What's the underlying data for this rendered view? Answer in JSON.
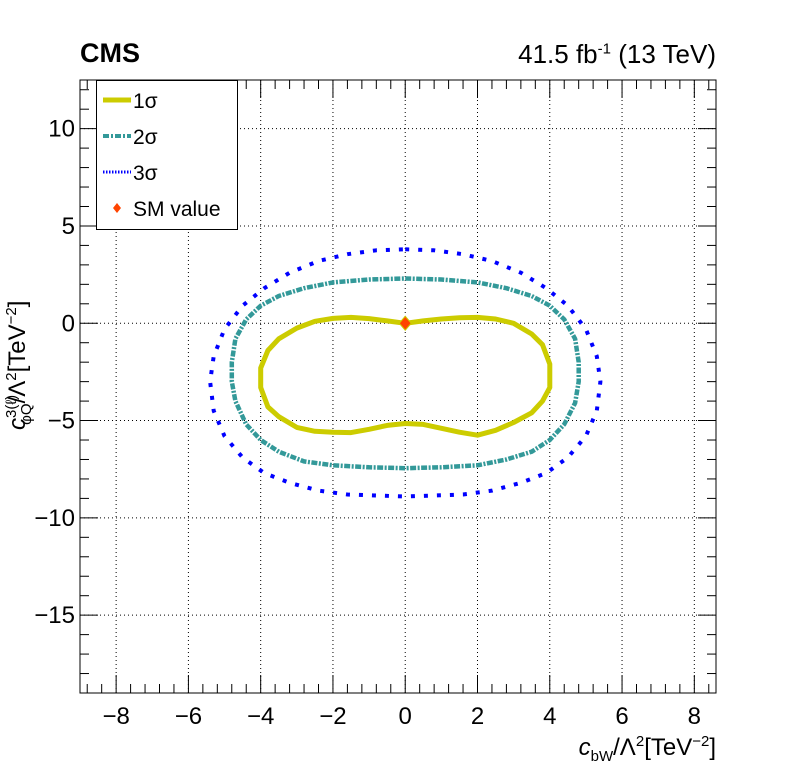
{
  "header": {
    "experiment": "CMS",
    "lumi_prefix": "41.5 fb",
    "lumi_exp": "-1",
    "lumi_suffix": " (13 TeV)"
  },
  "axes": {
    "xlabel_var": "c",
    "xlabel_sub": "bW",
    "xlabel_rest": "/Λ",
    "xlabel_sq": "2",
    "xlabel_unit": "[TeV",
    "xlabel_unit_exp": "−2",
    "xlabel_close": "]",
    "ylabel_var": "c",
    "ylabel_sup": "3(ℓ)",
    "ylabel_sub": "φQ",
    "ylabel_rest": "/Λ",
    "ylabel_sq": "2",
    "ylabel_unit": "[TeV",
    "ylabel_unit_exp": "−2",
    "ylabel_close": "]"
  },
  "legend": [
    {
      "label": "1σ",
      "color": "#cccc00",
      "style": "solid"
    },
    {
      "label": "2σ",
      "color": "#339999",
      "style": "dash-dot"
    },
    {
      "label": "3σ",
      "color": "#0000ff",
      "style": "dotted"
    },
    {
      "label": "SM value",
      "color": "#ff4400",
      "style": "marker"
    }
  ],
  "chart_data": {
    "type": "scatter",
    "xlim": [
      -9,
      8.6
    ],
    "ylim": [
      -19,
      12.5
    ],
    "x_ticks": [
      -8,
      -6,
      -4,
      -2,
      0,
      2,
      4,
      6,
      8
    ],
    "y_ticks": [
      -15,
      -10,
      -5,
      0,
      5,
      10
    ],
    "x_tick_labels": [
      "−8",
      "−6",
      "−4",
      "−2",
      "0",
      "2",
      "4",
      "6",
      "8"
    ],
    "y_tick_labels": [
      "−15",
      "−10",
      "−5",
      "0",
      "5",
      "10"
    ],
    "grid": true,
    "legend_position": "top-left",
    "series": [
      {
        "name": "1σ",
        "color": "#cccc00",
        "x": [
          0,
          0.5,
          1,
          1.5,
          2,
          2.5,
          3,
          3.5,
          3.8,
          4,
          4,
          4,
          3.8,
          3.5,
          3,
          2.5,
          2,
          1.5,
          1,
          0.5,
          0,
          -0.5,
          -1,
          -1.5,
          -2,
          -2.5,
          -3,
          -3.5,
          -3.8,
          -4,
          -4,
          -4,
          -3.8,
          -3.5,
          -3,
          -2.5,
          -2,
          -1.5,
          -1,
          -0.5,
          0
        ],
        "y": [
          0,
          0.12,
          0.22,
          0.28,
          0.3,
          0.22,
          0,
          -0.55,
          -1.1,
          -2.1,
          -2.6,
          -3.3,
          -4.0,
          -4.6,
          -5.1,
          -5.5,
          -5.75,
          -5.6,
          -5.4,
          -5.2,
          -5.15,
          -5.25,
          -5.45,
          -5.62,
          -5.6,
          -5.55,
          -5.35,
          -4.8,
          -4.3,
          -3.3,
          -2.6,
          -2.3,
          -1.4,
          -0.8,
          -0.25,
          0.1,
          0.25,
          0.3,
          0.24,
          0.12,
          0
        ]
      },
      {
        "name": "2σ",
        "color": "#339999",
        "x": [
          0,
          1,
          2,
          2.8,
          3.5,
          4,
          4.4,
          4.7,
          4.8,
          4.8,
          4.7,
          4.4,
          4,
          3.5,
          2.8,
          2,
          1,
          0,
          -1,
          -2,
          -2.8,
          -3.5,
          -4,
          -4.4,
          -4.7,
          -4.8,
          -4.8,
          -4.7,
          -4.4,
          -4,
          -3.5,
          -2.8,
          -2,
          -1,
          0
        ],
        "y": [
          2.3,
          2.25,
          2.1,
          1.8,
          1.4,
          0.9,
          0.2,
          -0.8,
          -2,
          -3,
          -4.1,
          -5.2,
          -6,
          -6.6,
          -7,
          -7.3,
          -7.4,
          -7.45,
          -7.4,
          -7.3,
          -7.1,
          -6.6,
          -6,
          -5.2,
          -4,
          -3,
          -2,
          -0.8,
          0.2,
          0.9,
          1.4,
          1.8,
          2.1,
          2.25,
          2.3
        ]
      },
      {
        "name": "3σ",
        "color": "#0000ff",
        "x": [
          0,
          0.8,
          1.6,
          2.4,
          3.2,
          3.9,
          4.5,
          5,
          5.3,
          5.4,
          5.3,
          5,
          4.5,
          3.9,
          3.2,
          2.4,
          1.6,
          0.8,
          0,
          -0.8,
          -1.6,
          -2.4,
          -3.2,
          -3.9,
          -4.5,
          -5,
          -5.3,
          -5.4,
          -5.3,
          -5,
          -4.5,
          -3.9,
          -3.2,
          -2.4,
          -1.6,
          -0.8,
          0
        ],
        "y": [
          3.8,
          3.75,
          3.55,
          3.2,
          2.6,
          1.8,
          0.9,
          -0.3,
          -1.7,
          -3,
          -4.5,
          -5.8,
          -6.9,
          -7.7,
          -8.2,
          -8.6,
          -8.8,
          -8.85,
          -8.9,
          -8.85,
          -8.8,
          -8.6,
          -8.2,
          -7.7,
          -6.9,
          -5.8,
          -4.5,
          -3,
          -1.7,
          -0.3,
          0.9,
          1.8,
          2.6,
          3.2,
          3.55,
          3.75,
          3.8
        ]
      }
    ],
    "sm_point": {
      "name": "SM value",
      "x": 0,
      "y": 0
    }
  }
}
